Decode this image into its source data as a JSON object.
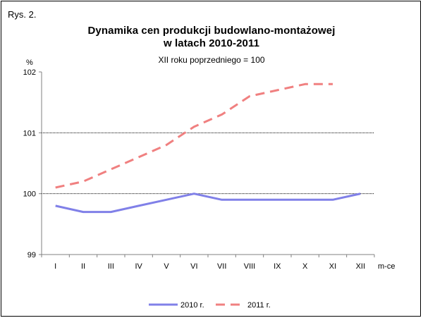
{
  "figure_label": "Rys. 2.",
  "chart_data": {
    "type": "line",
    "title": "Dynamika cen produkcji budowlano-montażowej",
    "title_line2": "w latach 2010-2011",
    "subtitle": "XII roku poprzedniego = 100",
    "ylabel": "%",
    "xlabel": "m-ce",
    "categories": [
      "I",
      "II",
      "III",
      "IV",
      "V",
      "VI",
      "VII",
      "VIII",
      "IX",
      "X",
      "XI",
      "XII"
    ],
    "ylim": [
      99,
      102
    ],
    "yticks": [
      "99",
      "100",
      "101",
      "102"
    ],
    "gridlines": [
      100,
      101
    ],
    "legend_position": "bottom",
    "series": [
      {
        "name": "2010 r.",
        "color": "#8080e8",
        "dash": "solid",
        "values": [
          99.8,
          99.7,
          99.7,
          99.8,
          99.9,
          100.0,
          99.9,
          99.9,
          99.9,
          99.9,
          99.9,
          100.0
        ]
      },
      {
        "name": "2011 r.",
        "color": "#f08080",
        "dash": "dashed",
        "values": [
          100.1,
          100.2,
          100.4,
          100.6,
          100.8,
          101.1,
          101.3,
          101.6,
          101.7,
          101.8,
          101.8,
          null
        ]
      }
    ]
  }
}
